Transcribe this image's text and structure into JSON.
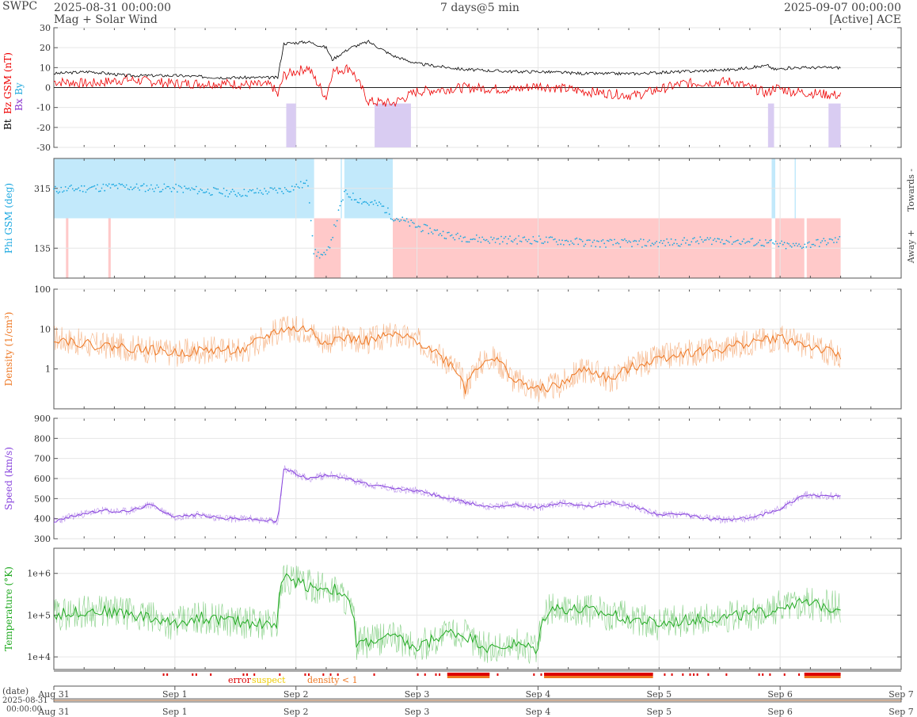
{
  "header": {
    "org": "SWPC",
    "start": "2025-08-31 00:00:00",
    "product": "Mag + Solar Wind",
    "span": "7 days@5 min",
    "end": "2025-09-07 00:00:00",
    "source": "[Active] ACE"
  },
  "colors": {
    "bt": "#000000",
    "bz": "#ee0000",
    "bx": "#8833cc",
    "by": "#22aadd",
    "phi": "#1aa7e0",
    "phi_toward_fill": "#c2e9fb",
    "phi_away_fill": "#ffc9c9",
    "density": "#ee7722",
    "speed": "#8844dd",
    "temperature": "#22aa22",
    "error": "#dd0000",
    "suspect": "#eecc00",
    "density_lt1": "#ee7722",
    "grid": "#e6e6e6"
  },
  "chart_data": [
    {
      "id": "mag",
      "type": "line",
      "ylabel_parts": [
        "Bt",
        "Bz GSM (nT)"
      ],
      "extra_labels": [
        "Bx",
        "By"
      ],
      "ylim": [
        -30,
        30
      ],
      "yticks": [
        "30",
        "20",
        "10",
        "0",
        "-10",
        "-20",
        "-30"
      ],
      "ytick_values": [
        30,
        20,
        10,
        0,
        -10,
        -20,
        -30
      ],
      "grid": true,
      "series": [
        {
          "name": "Bt",
          "x_days": [
            0,
            0.3,
            0.6,
            1,
            1.4,
            1.8,
            1.85,
            1.9,
            2.1,
            2.25,
            2.3,
            2.45,
            2.6,
            2.8,
            3,
            3.4,
            3.8,
            4,
            4.4,
            4.8,
            5.2,
            5.6,
            5.9,
            5.95,
            6.1,
            6.5
          ],
          "values": [
            7,
            8,
            6,
            6,
            5,
            5,
            5,
            22,
            23,
            20,
            14,
            20,
            23,
            16,
            12,
            9,
            8,
            8,
            7,
            7,
            8,
            9,
            11,
            9,
            10,
            10
          ]
        },
        {
          "name": "Bz GSM",
          "x_days": [
            0,
            0.3,
            0.6,
            1,
            1.4,
            1.8,
            1.85,
            1.9,
            2.1,
            2.25,
            2.3,
            2.45,
            2.6,
            2.8,
            3,
            3.4,
            3.8,
            4,
            4.4,
            4.8,
            5.2,
            5.6,
            5.9,
            5.95,
            6.1,
            6.5
          ],
          "values": [
            3,
            2,
            4,
            2,
            2,
            1,
            -4,
            6,
            10,
            -5,
            8,
            10,
            -7,
            -8,
            -2,
            0,
            -1,
            1,
            -2,
            -4,
            2,
            3,
            -3,
            0,
            -2,
            -4
          ]
        }
      ]
    },
    {
      "id": "phi",
      "type": "scatter",
      "ylabel": "Phi GSM (deg)",
      "right_labels": [
        "Towards -",
        "Away +"
      ],
      "yticks": [
        "315",
        "135"
      ],
      "ytick_values": [
        315,
        135
      ],
      "ylim": [
        45,
        405
      ],
      "grid": true,
      "x_days": [
        0,
        0.5,
        1,
        1.5,
        1.9,
        2.1,
        2.15,
        2.25,
        2.4,
        2.6,
        2.7,
        2.8,
        3,
        3.3,
        3.6,
        4,
        4.5,
        5,
        5.5,
        5.9,
        6.1,
        6.5
      ],
      "values": [
        310,
        320,
        315,
        300,
        310,
        330,
        120,
        110,
        300,
        270,
        265,
        230,
        200,
        170,
        160,
        160,
        150,
        150,
        160,
        150,
        140,
        160
      ]
    },
    {
      "id": "density",
      "type": "line",
      "ylabel": "Density (1/cm³)",
      "scale": "log",
      "ylim": [
        0.1,
        100
      ],
      "yticks": [
        "100",
        "10",
        "1"
      ],
      "ytick_values": [
        100,
        10,
        1
      ],
      "grid": true,
      "x_days": [
        0,
        0.3,
        0.6,
        1,
        1.3,
        1.6,
        1.9,
        2.1,
        2.2,
        2.4,
        2.6,
        2.8,
        3,
        3.2,
        3.4,
        3.6,
        3.8,
        4,
        4.2,
        4.4,
        4.6,
        4.9,
        5.2,
        5.5,
        5.8,
        6,
        6.2,
        6.5
      ],
      "values": [
        6,
        4,
        3.5,
        2.5,
        3,
        3,
        10,
        10,
        5,
        6,
        5,
        7,
        5,
        2,
        0.3,
        2,
        0.5,
        0.3,
        0.4,
        1,
        0.5,
        1.5,
        2.5,
        3,
        5,
        6,
        4,
        2
      ]
    },
    {
      "id": "speed",
      "type": "line",
      "ylabel": "Speed (km/s)",
      "ylim": [
        300,
        900
      ],
      "yticks": [
        "900",
        "800",
        "700",
        "600",
        "500",
        "400",
        "300"
      ],
      "ytick_values": [
        900,
        800,
        700,
        600,
        500,
        400,
        300
      ],
      "grid": true,
      "x_days": [
        0,
        0.2,
        0.4,
        0.6,
        0.8,
        1,
        1.2,
        1.4,
        1.6,
        1.85,
        1.9,
        2.1,
        2.3,
        2.6,
        2.8,
        3,
        3.2,
        3.4,
        3.6,
        3.8,
        4,
        4.2,
        4.4,
        4.6,
        4.8,
        5,
        5.2,
        5.4,
        5.6,
        5.8,
        6,
        6.2,
        6.5
      ],
      "values": [
        385,
        420,
        440,
        435,
        470,
        410,
        420,
        400,
        400,
        385,
        650,
        600,
        620,
        570,
        550,
        540,
        510,
        480,
        460,
        470,
        455,
        480,
        460,
        480,
        460,
        420,
        420,
        400,
        395,
        410,
        450,
        520,
        510
      ]
    },
    {
      "id": "temperature",
      "type": "line",
      "ylabel": "Temperature (°K)",
      "scale": "log",
      "ylim": [
        5000,
        4000000
      ],
      "yticks": [
        "1e+6",
        "1e+5",
        "1e+4"
      ],
      "ytick_values": [
        1000000,
        100000,
        10000
      ],
      "grid": true,
      "x_days": [
        0,
        0.3,
        0.6,
        1,
        1.2,
        1.5,
        1.85,
        1.9,
        2.1,
        2.35,
        2.5,
        2.8,
        3,
        3.3,
        3.6,
        3.8,
        4,
        4.1,
        4.4,
        4.7,
        5,
        5.3,
        5.6,
        5.9,
        6.1,
        6.5
      ],
      "values": [
        100000,
        130000,
        110000,
        60000,
        90000,
        70000,
        60000,
        800000,
        500000,
        400000,
        20000,
        30000,
        15000,
        40000,
        15000,
        20000,
        15000,
        150000,
        130000,
        90000,
        60000,
        80000,
        90000,
        120000,
        200000,
        150000
      ]
    },
    {
      "id": "quality",
      "type": "table",
      "legend": [
        "error",
        "suspect",
        "density < 1"
      ],
      "flag_spans_days": [
        [
          3.25,
          3.6
        ],
        [
          4.05,
          4.95
        ],
        [
          6.2,
          6.5
        ]
      ]
    }
  ],
  "xaxis": {
    "tick_labels": [
      "Aug 31",
      "Sep 1",
      "Sep 2",
      "Sep 3",
      "Sep 4",
      "Sep 5",
      "Sep 6",
      "Sep 7"
    ],
    "tick_days": [
      0,
      1,
      2,
      3,
      4,
      5,
      6,
      7
    ],
    "date_label": "(date)",
    "slider_start": "2025-08-31",
    "slider_time": "00:00:00"
  }
}
